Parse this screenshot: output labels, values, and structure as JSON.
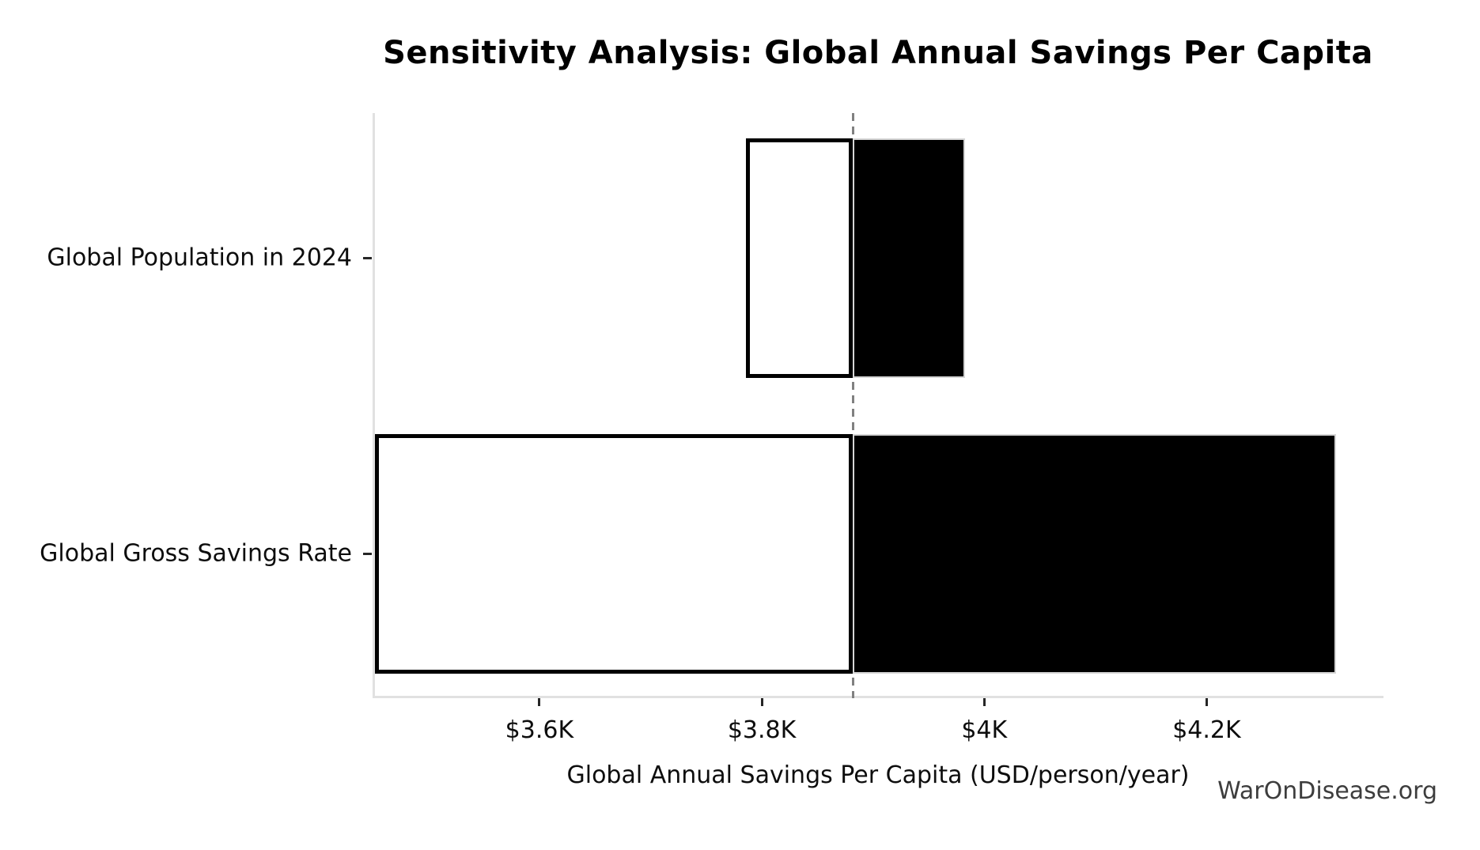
{
  "header": {
    "title": "Sensitivity Analysis: Global Annual Savings Per Capita"
  },
  "watermark": "WarOnDisease.org",
  "chart_data": {
    "type": "bar",
    "subtype": "tornado-horizontal",
    "title": "Sensitivity Analysis: Global Annual Savings Per Capita",
    "xlabel": "Global Annual Savings Per Capita (USD/person/year)",
    "ylabel": "",
    "categories": [
      "Global Population in 2024",
      "Global Gross Savings Rate"
    ],
    "rows": [
      {
        "label": "Global Population in 2024",
        "low": 3786,
        "high": 3983
      },
      {
        "label": "Global Gross Savings Rate",
        "low": 3452,
        "high": 4316
      }
    ],
    "baseline": 3882,
    "xlim": [
      3450,
      4359
    ],
    "x_ticks": [
      {
        "value": 3600,
        "label": "$3.6K"
      },
      {
        "value": 3800,
        "label": "$3.8K"
      },
      {
        "value": 4000,
        "label": "$4K"
      },
      {
        "value": 4200,
        "label": "$4.2K"
      }
    ],
    "grid": false,
    "legend": "none",
    "colors": {
      "low_fill": "#ffffff",
      "low_edge": "#000000",
      "high_fill": "#000000",
      "high_edge": "#d6d6d6",
      "baseline_line": "#808080",
      "spine": "#e1e1e1",
      "tick": "#262626",
      "watermark_text": "#3d3d3d"
    }
  }
}
